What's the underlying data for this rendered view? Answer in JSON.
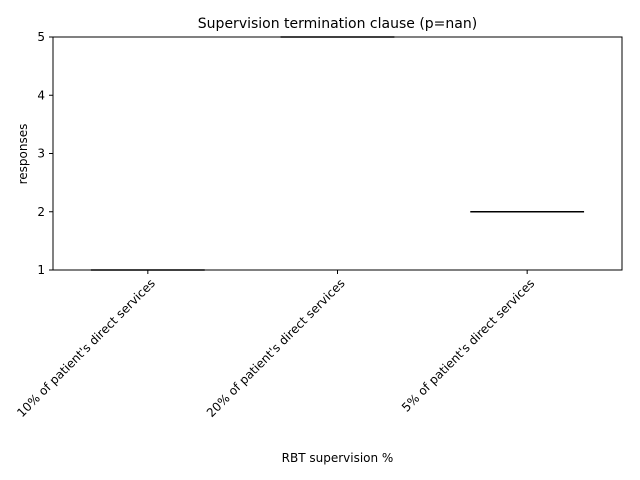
{
  "chart_data": {
    "type": "box",
    "title": "Supervision termination clause (p=nan)",
    "xlabel": "RBT supervision %",
    "ylabel": "responses",
    "ylim": [
      1,
      5
    ],
    "yticks": [
      1,
      2,
      3,
      4,
      5
    ],
    "categories": [
      "10% of patient's direct services",
      "20% of patient's direct services",
      "5% of patient's direct services"
    ],
    "values": [
      1,
      5,
      2
    ],
    "grid": false,
    "colors": {
      "axis": "#000000",
      "box": "#000000",
      "median": "#000000",
      "background": "#ffffff"
    }
  }
}
